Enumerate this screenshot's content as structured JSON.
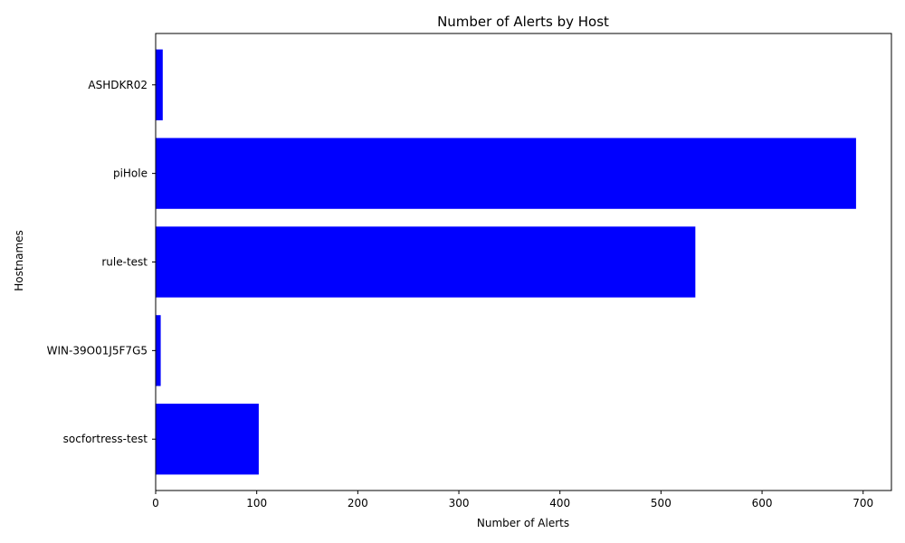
{
  "chart_data": {
    "type": "bar",
    "orientation": "horizontal",
    "title": "Number of Alerts by Host",
    "xlabel": "Number of Alerts",
    "ylabel": "Hostnames",
    "categories": [
      "socfortress-test",
      "WIN-39O01J5F7G5",
      "rule-test",
      "piHole",
      "ASHDKR02"
    ],
    "values": [
      102,
      5,
      534,
      693,
      7
    ],
    "xlim": [
      0,
      728
    ],
    "xticks": [
      0,
      100,
      200,
      300,
      400,
      500,
      600,
      700
    ],
    "bar_color": "#0000ff",
    "grid": false,
    "legend": "none"
  }
}
